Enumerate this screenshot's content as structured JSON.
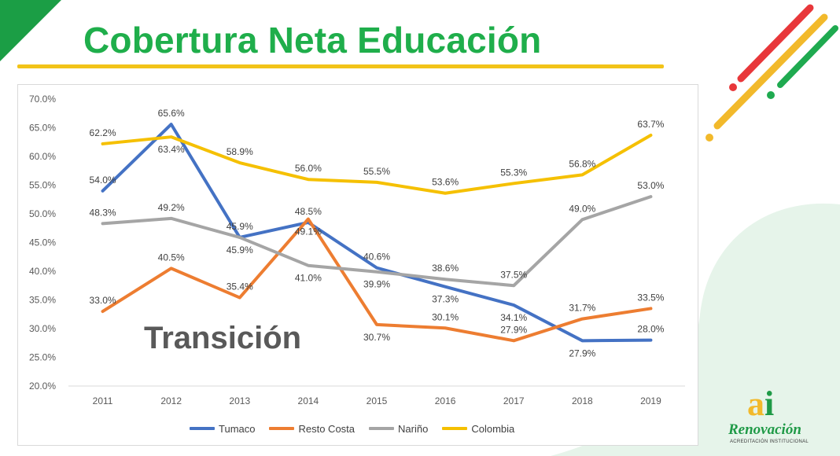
{
  "slide": {
    "title": "Cobertura Neta Educación",
    "overlay_label": "Transición",
    "colors": {
      "title": "#1fae4b",
      "underline": "#f2c318",
      "corner": "#1b9e45"
    }
  },
  "logo": {
    "mark": "ai",
    "word": "Renovación",
    "sub": "ACREDITACIÓN INSTITUCIONAL"
  },
  "chart_data": {
    "type": "line",
    "title": "",
    "xlabel": "",
    "ylabel": "",
    "x": [
      "2011",
      "2012",
      "2013",
      "2014",
      "2015",
      "2016",
      "2017",
      "2018",
      "2019"
    ],
    "ylim": [
      20,
      70
    ],
    "y_ticks": [
      "20.0%",
      "25.0%",
      "30.0%",
      "35.0%",
      "40.0%",
      "45.0%",
      "50.0%",
      "55.0%",
      "60.0%",
      "65.0%",
      "70.0%"
    ],
    "grid": false,
    "legend_position": "bottom",
    "series": [
      {
        "name": "Tumaco",
        "color": "#4472c4",
        "values": [
          54.0,
          65.6,
          45.9,
          48.5,
          40.6,
          37.3,
          34.1,
          27.9,
          28.0
        ],
        "labels": [
          "54.0%",
          "65.6%",
          "45.9%",
          "48.5%",
          "40.6%",
          "37.3%",
          "34.1%",
          "27.9%",
          "28.0%"
        ]
      },
      {
        "name": "Resto Costa",
        "color": "#ed7d31",
        "values": [
          33.0,
          40.5,
          35.4,
          49.1,
          30.7,
          30.1,
          27.9,
          31.7,
          33.5
        ],
        "labels": [
          "33.0%",
          "40.5%",
          "35.4%",
          "49.1%",
          "30.7%",
          "30.1%",
          "27.9%",
          "31.7%",
          "33.5%"
        ]
      },
      {
        "name": "Nariño",
        "color": "#a5a5a5",
        "values": [
          48.3,
          49.2,
          45.9,
          41.0,
          39.9,
          38.6,
          37.5,
          49.0,
          53.0
        ],
        "labels": [
          "48.3%",
          "49.2%",
          "45.9%",
          "41.0%",
          "39.9%",
          "38.6%",
          "37.5%",
          "49.0%",
          "53.0%"
        ]
      },
      {
        "name": "Colombia",
        "color": "#f5c000",
        "values": [
          62.2,
          63.4,
          58.9,
          56.0,
          55.5,
          53.6,
          55.3,
          56.8,
          63.7
        ],
        "labels": [
          "62.2%",
          "63.4%",
          "58.9%",
          "56.0%",
          "55.5%",
          "53.6%",
          "55.3%",
          "56.8%",
          "63.7%"
        ]
      }
    ]
  }
}
